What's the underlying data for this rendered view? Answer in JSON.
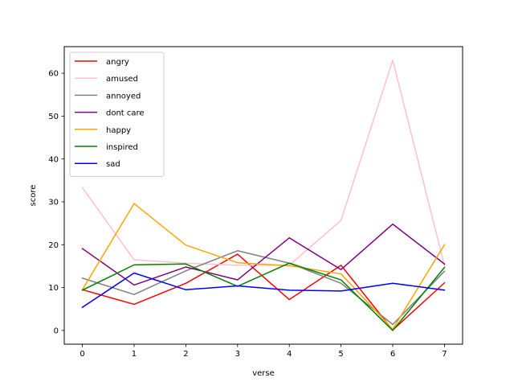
{
  "chart_data": {
    "type": "line",
    "xlabel": "verse",
    "ylabel": "score",
    "x": [
      0,
      1,
      2,
      3,
      4,
      5,
      6,
      7
    ],
    "xlim": [
      -0.35,
      7.35
    ],
    "ylim": [
      -3.2,
      66.2
    ],
    "xticks": [
      0,
      1,
      2,
      3,
      4,
      5,
      6,
      7
    ],
    "yticks": [
      0,
      10,
      20,
      30,
      40,
      50,
      60
    ],
    "grid": false,
    "legend_position": "upper-left",
    "series": [
      {
        "name": "angry",
        "color": "#ff0000",
        "values": [
          9.5,
          6.1,
          11.0,
          17.8,
          7.2,
          15.2,
          0.1,
          11.1
        ]
      },
      {
        "name": "amused",
        "color": "#ffc0cb",
        "values": [
          33.3,
          16.5,
          15.7,
          15.2,
          15.2,
          25.7,
          63.0,
          15.1
        ]
      },
      {
        "name": "annoyed",
        "color": "#808080",
        "values": [
          12.2,
          8.4,
          13.9,
          18.6,
          15.7,
          11.0,
          1.4,
          13.8
        ]
      },
      {
        "name": "dont care",
        "color": "#800080",
        "values": [
          19.1,
          10.6,
          14.8,
          11.8,
          21.6,
          14.2,
          24.8,
          15.5
        ]
      },
      {
        "name": "happy",
        "color": "#ffa500",
        "values": [
          9.5,
          29.6,
          19.9,
          15.8,
          15.1,
          13.2,
          0.3,
          20.0
        ]
      },
      {
        "name": "inspired",
        "color": "#008000",
        "values": [
          9.4,
          15.3,
          15.5,
          10.3,
          15.7,
          11.8,
          0.0,
          14.7
        ]
      },
      {
        "name": "sad",
        "color": "#0000ff",
        "values": [
          5.4,
          13.4,
          9.5,
          10.4,
          9.4,
          9.2,
          11.0,
          9.4
        ]
      }
    ]
  }
}
